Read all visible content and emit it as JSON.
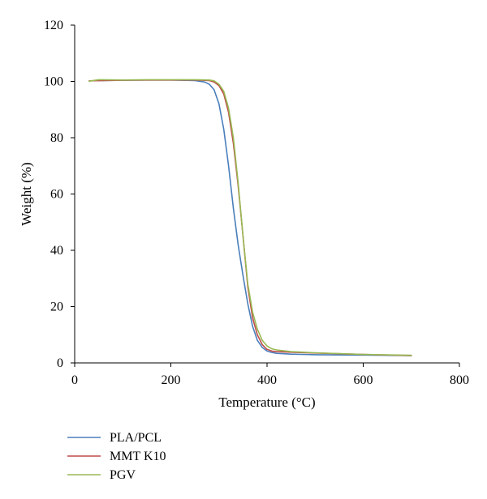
{
  "chart_data": {
    "type": "line",
    "xlabel": "Temperature (°C)",
    "ylabel": "Weight (%)",
    "xlim": [
      0,
      800
    ],
    "ylim": [
      0,
      120
    ],
    "xticks": [
      0,
      200,
      400,
      600,
      800
    ],
    "yticks": [
      0,
      20,
      40,
      60,
      80,
      100,
      120
    ],
    "grid": false,
    "legend_position": "bottom-left",
    "series": [
      {
        "name": "PLA/PCL",
        "color": "#4a7ebb",
        "x": [
          50,
          100,
          150,
          200,
          250,
          270,
          280,
          290,
          300,
          310,
          320,
          330,
          340,
          350,
          360,
          370,
          380,
          390,
          400,
          410,
          420,
          450,
          500,
          600,
          700
        ],
        "y": [
          100.3,
          100.4,
          100.5,
          100.5,
          100.3,
          99.8,
          99.0,
          97.0,
          92.0,
          83.0,
          70.0,
          55.0,
          42.0,
          31.0,
          21.0,
          13.0,
          8.0,
          5.5,
          4.2,
          3.7,
          3.4,
          3.1,
          2.9,
          2.8,
          2.6
        ]
      },
      {
        "name": "MMT K10",
        "color": "#be4b48",
        "x": [
          30,
          100,
          150,
          200,
          250,
          280,
          290,
          300,
          310,
          320,
          330,
          340,
          350,
          360,
          370,
          380,
          390,
          400,
          410,
          420,
          450,
          500,
          600,
          700
        ],
        "y": [
          100.2,
          100.4,
          100.5,
          100.5,
          100.5,
          100.3,
          99.8,
          98.5,
          95.5,
          89.0,
          78.0,
          63.0,
          45.0,
          27.0,
          16.0,
          10.0,
          6.5,
          4.8,
          4.2,
          4.0,
          3.8,
          3.5,
          3.0,
          2.6
        ]
      },
      {
        "name": "PGV",
        "color": "#98b954",
        "x": [
          30,
          50,
          100,
          150,
          200,
          250,
          280,
          290,
          300,
          310,
          320,
          330,
          340,
          350,
          360,
          370,
          380,
          390,
          400,
          410,
          420,
          450,
          500,
          600,
          700
        ],
        "y": [
          100.1,
          100.6,
          100.5,
          100.6,
          100.6,
          100.6,
          100.5,
          100.2,
          99.0,
          96.5,
          90.5,
          80.0,
          64.0,
          45.0,
          28.0,
          18.0,
          12.0,
          8.0,
          6.0,
          5.0,
          4.6,
          4.0,
          3.6,
          3.0,
          2.7
        ]
      }
    ]
  }
}
